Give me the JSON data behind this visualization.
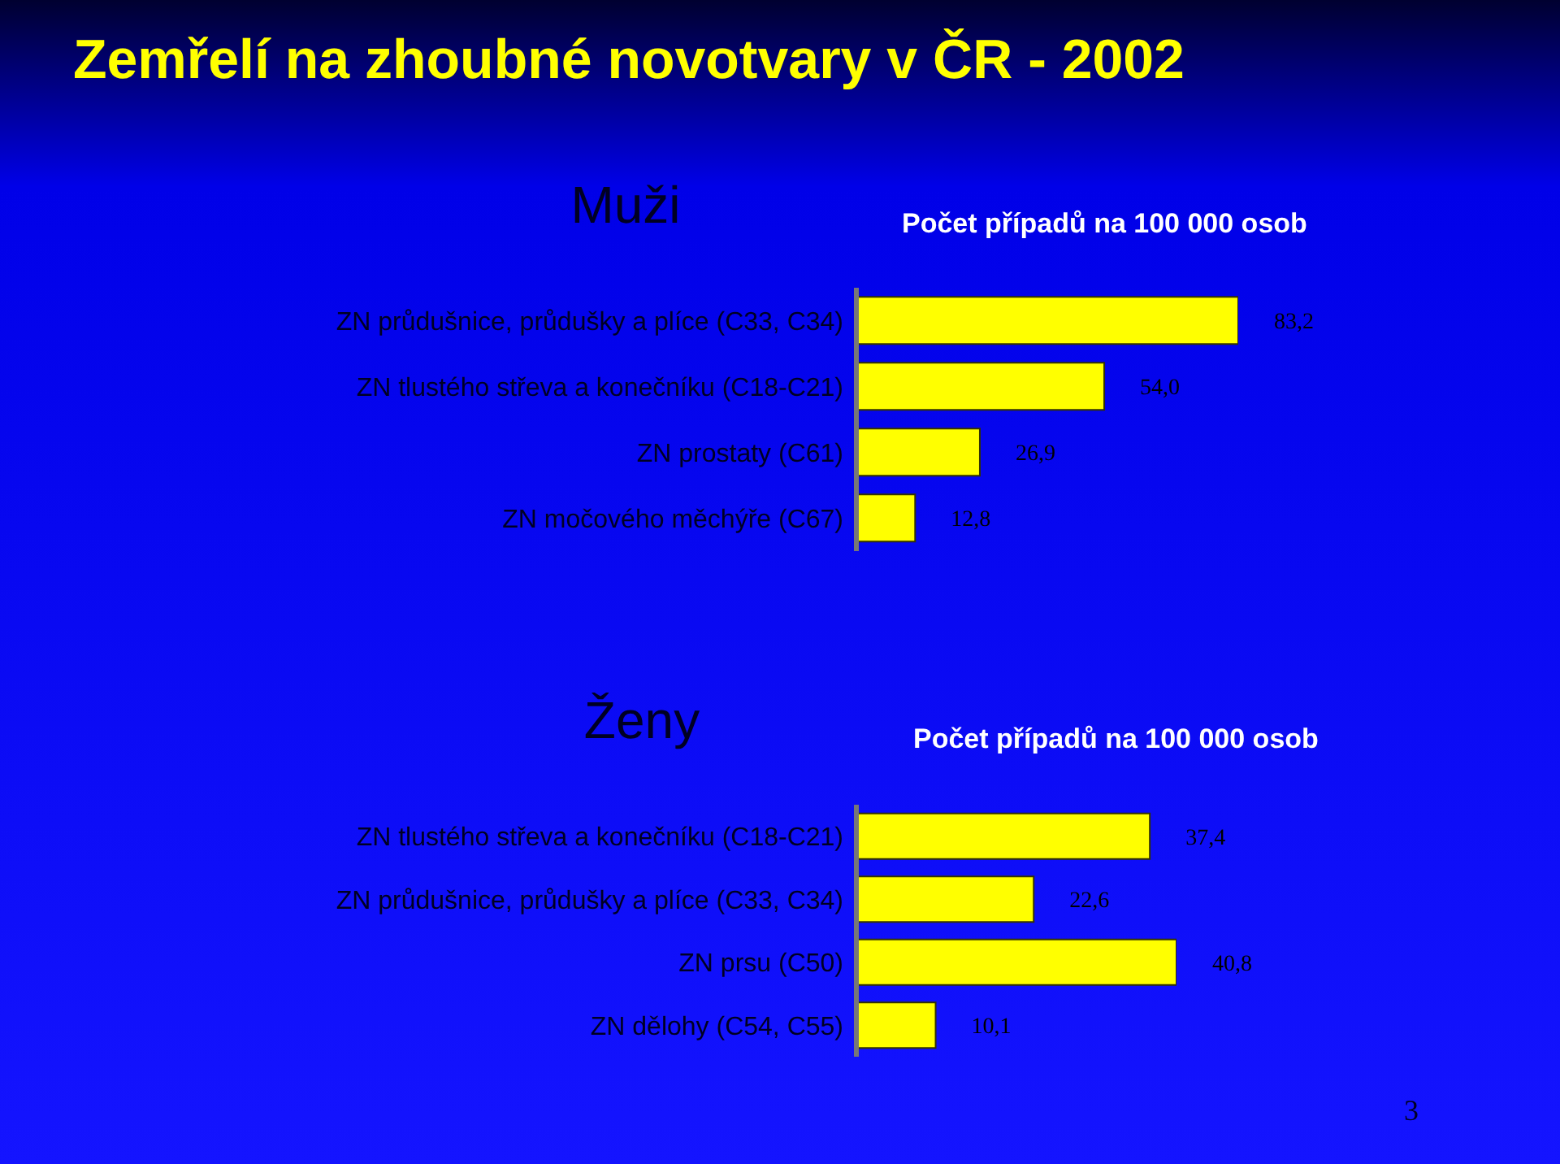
{
  "chart_data": [
    {
      "type": "bar",
      "orientation": "horizontal",
      "title": "Zemřelí na zhoubné novotvary v ČR - 2002",
      "subtitle": "Muži",
      "annotations": [
        "Počet případů na 100 000 osob"
      ],
      "categories": [
        "ZN průdušnice, průdušky a plíce (C33, C34)",
        "ZN tlustého střeva a konečníku (C18-C21)",
        "ZN prostaty (C61)",
        "ZN močového měchýře (C67)"
      ],
      "values": [
        83.2,
        54.0,
        26.9,
        12.8
      ],
      "value_labels": [
        "83,2",
        "54,0",
        "26,9",
        "12,8"
      ],
      "color": "#ffff00",
      "tick_labels": "y",
      "grid": false,
      "legend": false
    },
    {
      "type": "bar",
      "orientation": "horizontal",
      "subtitle": "Ženy",
      "annotations": [
        "Počet případů na 100 000 osob",
        "3"
      ],
      "categories": [
        "ZN tlustého střeva a konečníku (C18-C21)",
        "ZN průdušnice, průdušky a plíce (C33, C34)",
        "ZN prsu (C50)",
        "ZN dělohy (C54, C55)"
      ],
      "values": [
        37.4,
        22.6,
        40.8,
        10.1
      ],
      "value_labels": [
        "37,4",
        "22,6",
        "40,8",
        "10,1"
      ],
      "color": "#ffff00",
      "tick_labels": "y",
      "grid": false,
      "legend": false
    }
  ]
}
